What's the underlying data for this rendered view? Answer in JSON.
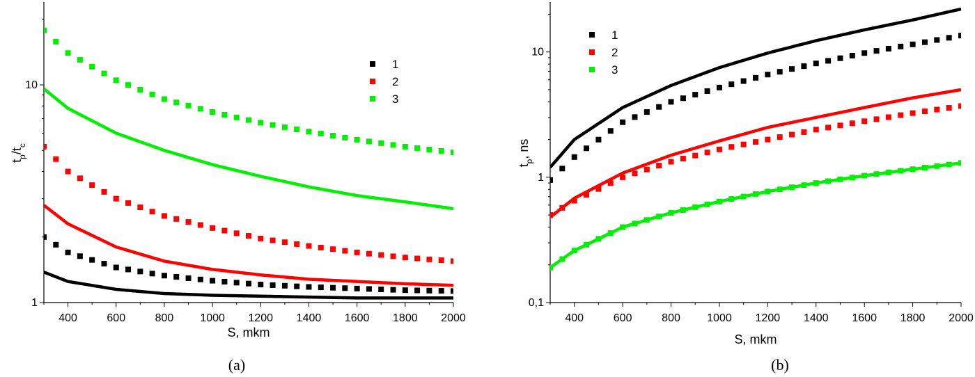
{
  "colors": {
    "1": "#000000",
    "2": "#ff0000",
    "3": "#00ee00"
  },
  "chart_data": [
    {
      "type": "line",
      "panel_label": "(a)",
      "xlabel": "S, mkm",
      "ylabel_main": "t",
      "ylabel_sub1": "p",
      "ylabel_mid": "/t",
      "ylabel_sub2": "c",
      "xlim": [
        300,
        2000
      ],
      "ylim": [
        1,
        24
      ],
      "yscale": "log",
      "x_ticks": [
        "400",
        "600",
        "800",
        "1000",
        "1200",
        "1400",
        "1600",
        "1800",
        "2000"
      ],
      "y_ticks": [
        "1",
        "10"
      ],
      "legend": {
        "position": "top-right",
        "entries": [
          "1",
          "2",
          "3"
        ]
      },
      "lines": [
        {
          "legend": "1",
          "x": [
            300,
            400,
            600,
            800,
            1000,
            1200,
            1400,
            1600,
            1800,
            2000
          ],
          "y": [
            1.38,
            1.25,
            1.15,
            1.1,
            1.08,
            1.07,
            1.06,
            1.05,
            1.05,
            1.05
          ]
        },
        {
          "legend": "2",
          "x": [
            300,
            400,
            600,
            800,
            1000,
            1200,
            1400,
            1600,
            1800,
            2000
          ],
          "y": [
            2.8,
            2.3,
            1.8,
            1.55,
            1.42,
            1.34,
            1.28,
            1.25,
            1.22,
            1.2
          ]
        },
        {
          "legend": "3",
          "x": [
            300,
            400,
            600,
            800,
            1000,
            1200,
            1400,
            1600,
            1800,
            2000
          ],
          "y": [
            9.6,
            7.8,
            6.0,
            5.0,
            4.3,
            3.8,
            3.4,
            3.1,
            2.9,
            2.7
          ]
        }
      ],
      "points": [
        {
          "legend": "1",
          "x": [
            300,
            400,
            600,
            800,
            1000,
            1200,
            1400,
            1600,
            1800,
            2000
          ],
          "y": [
            2.0,
            1.7,
            1.45,
            1.33,
            1.26,
            1.21,
            1.18,
            1.16,
            1.14,
            1.13
          ]
        },
        {
          "legend": "2",
          "x": [
            300,
            400,
            600,
            800,
            1000,
            1200,
            1400,
            1600,
            1800,
            2000
          ],
          "y": [
            5.2,
            4.0,
            3.0,
            2.5,
            2.2,
            1.97,
            1.82,
            1.7,
            1.61,
            1.55
          ]
        },
        {
          "legend": "3",
          "x": [
            300,
            400,
            600,
            800,
            1000,
            1200,
            1400,
            1600,
            1800,
            2000
          ],
          "y": [
            17.8,
            14.0,
            10.5,
            8.6,
            7.5,
            6.7,
            6.1,
            5.6,
            5.2,
            4.9
          ]
        }
      ]
    },
    {
      "type": "line",
      "panel_label": "(b)",
      "xlabel": "S, mkm",
      "ylabel_main": "t",
      "ylabel_sub1": "p",
      "ylabel_mid": ", ns",
      "ylabel_sub2": "",
      "xlim": [
        300,
        2000
      ],
      "ylim": [
        0.1,
        25
      ],
      "yscale": "log",
      "x_ticks": [
        "400",
        "600",
        "800",
        "1000",
        "1200",
        "1400",
        "1600",
        "1800",
        "2000"
      ],
      "y_ticks": [
        "0,1",
        "1",
        "10"
      ],
      "legend": {
        "position": "top-left",
        "entries": [
          "1",
          "2",
          "3"
        ]
      },
      "lines": [
        {
          "legend": "1",
          "x": [
            300,
            400,
            600,
            800,
            1000,
            1200,
            1400,
            1600,
            1800,
            2000
          ],
          "y": [
            1.2,
            2.0,
            3.6,
            5.4,
            7.5,
            9.8,
            12.3,
            15.0,
            18.0,
            22.0
          ]
        },
        {
          "legend": "2",
          "x": [
            300,
            400,
            600,
            800,
            1000,
            1200,
            1400,
            1600,
            1800,
            2000
          ],
          "y": [
            0.48,
            0.68,
            1.08,
            1.5,
            1.95,
            2.5,
            3.0,
            3.6,
            4.3,
            5.0
          ]
        },
        {
          "legend": "3",
          "x": [
            300,
            400,
            600,
            800,
            1000,
            1200,
            1400,
            1600,
            1800,
            2000
          ],
          "y": [
            0.19,
            0.26,
            0.4,
            0.52,
            0.64,
            0.77,
            0.9,
            1.03,
            1.16,
            1.3
          ]
        }
      ],
      "points": [
        {
          "legend": "1",
          "x": [
            300,
            400,
            600,
            800,
            1000,
            1200,
            1400,
            1600,
            1800,
            2000
          ],
          "y": [
            0.95,
            1.45,
            2.75,
            4.0,
            5.2,
            6.6,
            8.1,
            9.8,
            11.5,
            13.5
          ]
        },
        {
          "legend": "2",
          "x": [
            300,
            400,
            600,
            800,
            1000,
            1200,
            1400,
            1600,
            1800,
            2000
          ],
          "y": [
            0.5,
            0.65,
            1.0,
            1.33,
            1.67,
            2.0,
            2.4,
            2.8,
            3.25,
            3.7
          ]
        },
        {
          "legend": "3",
          "x": [
            300,
            400,
            600,
            800,
            1000,
            1200,
            1400,
            1600,
            1800,
            2000
          ],
          "y": [
            0.19,
            0.26,
            0.4,
            0.52,
            0.64,
            0.77,
            0.9,
            1.03,
            1.16,
            1.3
          ]
        }
      ]
    }
  ]
}
